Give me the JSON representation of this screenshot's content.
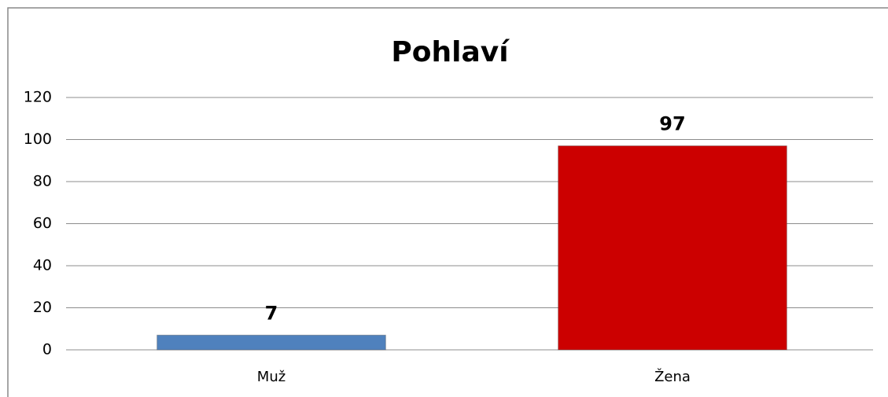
{
  "chart_data": {
    "type": "bar",
    "title": "Pohlaví",
    "categories": [
      "Muž",
      "Žena"
    ],
    "values": [
      7,
      97
    ],
    "colors": [
      "#4f81bd",
      "#cc0000"
    ],
    "ylim": [
      0,
      120
    ],
    "yticks": [
      0,
      20,
      40,
      60,
      80,
      100,
      120
    ],
    "grid": true,
    "data_labels": true
  }
}
